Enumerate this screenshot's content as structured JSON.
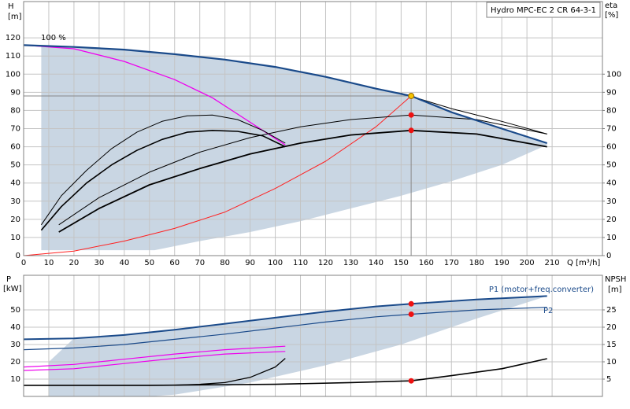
{
  "chart_data": [
    {
      "type": "line",
      "title": "Hydro MPC-EC 2 CR 64-3-1",
      "ylabel": "H",
      "yunit": "[m]",
      "y2label": "eta",
      "y2unit": "[%]",
      "xlabel": "Q [m³/h]",
      "annotation": "100 %",
      "xlim": [
        0,
        230
      ],
      "xticks": [
        0,
        10,
        20,
        30,
        40,
        50,
        60,
        70,
        80,
        90,
        100,
        110,
        120,
        130,
        140,
        150,
        160,
        170,
        180,
        190,
        200,
        210
      ],
      "ylim": [
        0,
        140
      ],
      "yticks": [
        0,
        10,
        20,
        30,
        40,
        50,
        60,
        70,
        80,
        90,
        100,
        110,
        120
      ],
      "y2lim": [
        0,
        140
      ],
      "y2ticks": [
        0,
        10,
        20,
        30,
        40,
        50,
        60,
        70,
        80,
        90,
        100
      ],
      "grid": true,
      "series": [
        {
          "style": "area",
          "color": "#c9d6e3",
          "x": [
            0,
            20,
            40,
            60,
            80,
            100,
            120,
            140,
            154,
            170,
            190,
            208,
            208,
            190,
            170,
            150,
            130,
            110,
            90,
            70,
            52,
            7,
            7
          ],
          "values": [
            116,
            115,
            113.5,
            111,
            108,
            104,
            98.5,
            92,
            88,
            79,
            70,
            62,
            61,
            50,
            41,
            33,
            26,
            19,
            13,
            8,
            3,
            3,
            116
          ]
        },
        {
          "color": "#888888",
          "width": 1,
          "x": [
            0,
            154,
            154
          ],
          "values": [
            88,
            88,
            0
          ]
        },
        {
          "color": "#ff2020",
          "width": 1,
          "x": [
            0,
            20,
            40,
            60,
            80,
            100,
            120,
            140,
            154
          ],
          "values": [
            0,
            2.5,
            8,
            15,
            24,
            37,
            52,
            71,
            88
          ]
        },
        {
          "color": "#000000",
          "width": 1,
          "x": [
            150,
            170,
            190,
            208
          ],
          "values": [
            89.5,
            81,
            74,
            67
          ]
        },
        {
          "color": "#ee00ee",
          "width": 1.3,
          "x": [
            0,
            20,
            40,
            60,
            75,
            85,
            95,
            104
          ],
          "values": [
            116,
            114,
            107,
            97,
            87,
            78,
            69,
            61
          ]
        },
        {
          "color": "#000000",
          "width": 1,
          "axis": "y2",
          "x": [
            7,
            15,
            25,
            35,
            45,
            55,
            65,
            75,
            85,
            95,
            104
          ],
          "values": [
            17,
            33,
            47,
            59,
            68,
            74,
            77,
            77.5,
            75,
            69,
            62
          ]
        },
        {
          "color": "#000000",
          "width": 1.6,
          "axis": "y2",
          "x": [
            7,
            15,
            25,
            35,
            45,
            55,
            65,
            75,
            85,
            95,
            104
          ],
          "values": [
            14,
            27,
            40,
            50,
            58,
            64,
            68,
            69,
            68.5,
            66,
            60
          ]
        },
        {
          "color": "#000000",
          "width": 1,
          "axis": "y2",
          "x": [
            14,
            30,
            50,
            70,
            90,
            110,
            130,
            154,
            180,
            208
          ],
          "values": [
            17,
            32,
            46,
            57,
            65,
            71,
            75,
            77.5,
            75,
            67
          ]
        },
        {
          "color": "#000000",
          "width": 1.8,
          "axis": "y2",
          "x": [
            14,
            30,
            50,
            70,
            90,
            110,
            130,
            154,
            180,
            208
          ],
          "values": [
            13,
            26,
            39,
            48,
            56,
            62,
            66.5,
            69,
            67,
            60
          ]
        },
        {
          "color": "#1a4a8a",
          "width": 2.2,
          "x": [
            0,
            20,
            40,
            60,
            80,
            100,
            120,
            140,
            154,
            170,
            190,
            208
          ],
          "values": [
            116,
            115,
            113.5,
            111,
            108,
            104,
            98.5,
            92,
            88,
            79,
            70,
            62
          ]
        }
      ],
      "points": [
        {
          "x": 154,
          "y": 88,
          "color": "#f5c400"
        },
        {
          "x": 154,
          "y": 77.5,
          "color": "#ee1111",
          "axis": "y2"
        },
        {
          "x": 154,
          "y": 69,
          "color": "#ee1111",
          "axis": "y2"
        }
      ]
    },
    {
      "type": "line",
      "ylabel": "P",
      "yunit": "[kW]",
      "y2label": "NPSH",
      "y2unit": "[m]",
      "label_p1": "P1 (motor+freq.converter)",
      "label_p2": "P2",
      "xlim": [
        0,
        230
      ],
      "ylim": [
        0,
        70
      ],
      "yticks": [
        10,
        20,
        30,
        40,
        50
      ],
      "y2lim": [
        0,
        35
      ],
      "y2ticks": [
        5,
        10,
        15,
        20,
        25
      ],
      "grid": true,
      "series": [
        {
          "style": "area",
          "color": "#c9d6e3",
          "x": [
            10,
            20,
            40,
            60,
            80,
            100,
            120,
            140,
            154,
            180,
            208,
            208,
            180,
            150,
            120,
            90,
            60,
            50,
            10
          ],
          "values": [
            20,
            33.5,
            35.5,
            38.5,
            42,
            45.5,
            49,
            52,
            53.5,
            56,
            58,
            58,
            45,
            30,
            18,
            8,
            1,
            0,
            0
          ]
        },
        {
          "color": "#ee00ee",
          "width": 1.2,
          "x": [
            0,
            20,
            40,
            60,
            80,
            104
          ],
          "values": [
            17,
            18.5,
            21.5,
            24.5,
            27,
            29
          ]
        },
        {
          "color": "#ee00ee",
          "width": 1.2,
          "x": [
            0,
            20,
            40,
            60,
            80,
            104
          ],
          "values": [
            15,
            16,
            19,
            22,
            24.5,
            26
          ]
        },
        {
          "color": "#000000",
          "width": 1.3,
          "x": [
            60,
            70,
            80,
            90,
            100,
            104
          ],
          "values": [
            6.5,
            7,
            8,
            11,
            17,
            22
          ]
        },
        {
          "color": "#000000",
          "width": 1.6,
          "axis": "y2",
          "x": [
            0,
            50,
            100,
            130,
            154,
            170,
            190,
            208
          ],
          "values": [
            3.2,
            3.2,
            3.5,
            4,
            4.5,
            6,
            8,
            10.9
          ]
        },
        {
          "color": "#1a4a8a",
          "width": 1.2,
          "x": [
            0,
            20,
            40,
            60,
            80,
            100,
            120,
            140,
            154,
            180,
            208
          ],
          "values": [
            27,
            28,
            30,
            33,
            36,
            39.5,
            43,
            46,
            47.5,
            50,
            51.5
          ]
        },
        {
          "color": "#1a4a8a",
          "width": 2,
          "x": [
            0,
            20,
            40,
            60,
            80,
            100,
            120,
            140,
            154,
            180,
            208
          ],
          "values": [
            33,
            33.5,
            35.5,
            38.5,
            42,
            45.5,
            49,
            52,
            53.5,
            56,
            58
          ]
        }
      ],
      "points": [
        {
          "x": 154,
          "y": 53.5,
          "color": "#ee1111"
        },
        {
          "x": 154,
          "y": 47.5,
          "color": "#ee1111"
        },
        {
          "x": 154,
          "y": 4.5,
          "color": "#ee1111",
          "axis": "y2"
        }
      ]
    }
  ]
}
